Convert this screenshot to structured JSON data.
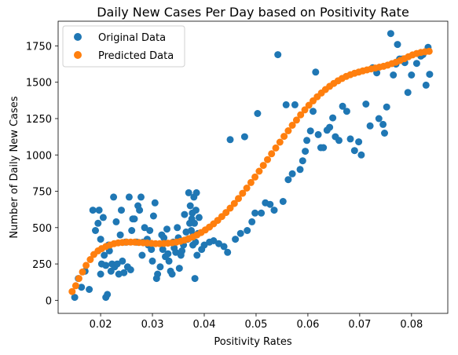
{
  "chart_data": {
    "type": "scatter",
    "title": "Daily New Cases Per Day based on Positivity Rate",
    "xlabel": "Positivity Rates",
    "ylabel": "Number of Daily New Cases",
    "xlim": [
      0.0118,
      0.087
    ],
    "ylim": [
      -90,
      1920
    ],
    "xticks": [
      0.02,
      0.03,
      0.04,
      0.05,
      0.06,
      0.07,
      0.08
    ],
    "xtick_labels": [
      "0.02",
      "0.03",
      "0.04",
      "0.05",
      "0.06",
      "0.07",
      "0.08"
    ],
    "yticks": [
      0,
      250,
      500,
      750,
      1000,
      1250,
      1500,
      1750
    ],
    "ytick_labels": [
      "0",
      "250",
      "500",
      "750",
      "1000",
      "1250",
      "1500",
      "1750"
    ],
    "grid": false,
    "legend_position": "top-left",
    "series": [
      {
        "name": "Original Data",
        "color": "#1f77b4",
        "points": [
          [
            0.015,
            20
          ],
          [
            0.0157,
            150
          ],
          [
            0.0163,
            90
          ],
          [
            0.017,
            200
          ],
          [
            0.0178,
            75
          ],
          [
            0.0185,
            620
          ],
          [
            0.019,
            480
          ],
          [
            0.0195,
            530
          ],
          [
            0.0197,
            620
          ],
          [
            0.02,
            180
          ],
          [
            0.02,
            420
          ],
          [
            0.0202,
            250
          ],
          [
            0.0205,
            570
          ],
          [
            0.0207,
            310
          ],
          [
            0.021,
            240
          ],
          [
            0.021,
            20
          ],
          [
            0.0213,
            40
          ],
          [
            0.0215,
            380
          ],
          [
            0.0217,
            340
          ],
          [
            0.022,
            200
          ],
          [
            0.0222,
            250
          ],
          [
            0.0225,
            710
          ],
          [
            0.0227,
            230
          ],
          [
            0.023,
            540
          ],
          [
            0.0232,
            250
          ],
          [
            0.0235,
            180
          ],
          [
            0.0238,
            450
          ],
          [
            0.024,
            620
          ],
          [
            0.0242,
            270
          ],
          [
            0.0245,
            190
          ],
          [
            0.0248,
            400
          ],
          [
            0.025,
            400
          ],
          [
            0.0252,
            230
          ],
          [
            0.0255,
            710
          ],
          [
            0.0258,
            210
          ],
          [
            0.026,
            480
          ],
          [
            0.0262,
            560
          ],
          [
            0.0265,
            560
          ],
          [
            0.0268,
            400
          ],
          [
            0.027,
            400
          ],
          [
            0.0272,
            650
          ],
          [
            0.0275,
            620
          ],
          [
            0.0278,
            710
          ],
          [
            0.028,
            310
          ],
          [
            0.0282,
            400
          ],
          [
            0.0285,
            500
          ],
          [
            0.029,
            420
          ],
          [
            0.0292,
            380
          ],
          [
            0.0295,
            480
          ],
          [
            0.0298,
            350
          ],
          [
            0.03,
            270
          ],
          [
            0.0302,
            580
          ],
          [
            0.0305,
            670
          ],
          [
            0.0308,
            150
          ],
          [
            0.031,
            180
          ],
          [
            0.0315,
            230
          ],
          [
            0.0318,
            450
          ],
          [
            0.032,
            350
          ],
          [
            0.0322,
            430
          ],
          [
            0.0325,
            300
          ],
          [
            0.0328,
            490
          ],
          [
            0.033,
            320
          ],
          [
            0.0332,
            270
          ],
          [
            0.0335,
            200
          ],
          [
            0.0338,
            180
          ],
          [
            0.034,
            400
          ],
          [
            0.0342,
            360
          ],
          [
            0.0345,
            330
          ],
          [
            0.0348,
            500
          ],
          [
            0.035,
            430
          ],
          [
            0.0352,
            220
          ],
          [
            0.0355,
            310
          ],
          [
            0.0357,
            340
          ],
          [
            0.036,
            380
          ],
          [
            0.0362,
            590
          ],
          [
            0.0365,
            470
          ],
          [
            0.0368,
            420
          ],
          [
            0.037,
            740
          ],
          [
            0.0372,
            530
          ],
          [
            0.0373,
            650
          ],
          [
            0.0375,
            480
          ],
          [
            0.0376,
            560
          ],
          [
            0.0377,
            600
          ],
          [
            0.0378,
            380
          ],
          [
            0.0379,
            450
          ],
          [
            0.038,
            710
          ],
          [
            0.0381,
            530
          ],
          [
            0.0382,
            150
          ],
          [
            0.0383,
            400
          ],
          [
            0.0384,
            620
          ],
          [
            0.0385,
            740
          ],
          [
            0.0386,
            310
          ],
          [
            0.0388,
            460
          ],
          [
            0.039,
            570
          ],
          [
            0.0395,
            350
          ],
          [
            0.04,
            380
          ],
          [
            0.041,
            400
          ],
          [
            0.0418,
            410
          ],
          [
            0.0428,
            390
          ],
          [
            0.0438,
            370
          ],
          [
            0.0445,
            330
          ],
          [
            0.045,
            1105
          ],
          [
            0.046,
            420
          ],
          [
            0.047,
            460
          ],
          [
            0.0478,
            1125
          ],
          [
            0.0483,
            480
          ],
          [
            0.0492,
            540
          ],
          [
            0.0498,
            600
          ],
          [
            0.0503,
            1285
          ],
          [
            0.051,
            600
          ],
          [
            0.0518,
            670
          ],
          [
            0.0527,
            660
          ],
          [
            0.0535,
            620
          ],
          [
            0.0542,
            1690
          ],
          [
            0.0552,
            680
          ],
          [
            0.0558,
            1345
          ],
          [
            0.0562,
            830
          ],
          [
            0.057,
            870
          ],
          [
            0.0575,
            1345
          ],
          [
            0.0585,
            900
          ],
          [
            0.059,
            960
          ],
          [
            0.0595,
            1025
          ],
          [
            0.0598,
            1100
          ],
          [
            0.0605,
            1165
          ],
          [
            0.061,
            1300
          ],
          [
            0.0615,
            1570
          ],
          [
            0.062,
            1140
          ],
          [
            0.0625,
            1050
          ],
          [
            0.063,
            1050
          ],
          [
            0.0637,
            1170
          ],
          [
            0.0642,
            1190
          ],
          [
            0.0648,
            1255
          ],
          [
            0.0653,
            1125
          ],
          [
            0.066,
            1100
          ],
          [
            0.0667,
            1335
          ],
          [
            0.0675,
            1300
          ],
          [
            0.0682,
            1110
          ],
          [
            0.069,
            1030
          ],
          [
            0.0698,
            1090
          ],
          [
            0.0703,
            1000
          ],
          [
            0.0712,
            1350
          ],
          [
            0.072,
            1200
          ],
          [
            0.0725,
            1600
          ],
          [
            0.0733,
            1565
          ],
          [
            0.0737,
            1250
          ],
          [
            0.0745,
            1210
          ],
          [
            0.0748,
            1150
          ],
          [
            0.0752,
            1330
          ],
          [
            0.076,
            1835
          ],
          [
            0.0765,
            1550
          ],
          [
            0.077,
            1625
          ],
          [
            0.0773,
            1760
          ],
          [
            0.0777,
            1660
          ],
          [
            0.0782,
            1660
          ],
          [
            0.0787,
            1635
          ],
          [
            0.0793,
            1430
          ],
          [
            0.08,
            1550
          ],
          [
            0.081,
            1630
          ],
          [
            0.0818,
            1680
          ],
          [
            0.0822,
            1690
          ],
          [
            0.0828,
            1480
          ],
          [
            0.0832,
            1740
          ],
          [
            0.0835,
            1555
          ]
        ]
      },
      {
        "name": "Predicted Data",
        "color": "#ff7f0e",
        "points": [
          [
            0.0145,
            60
          ],
          [
            0.0152,
            100
          ],
          [
            0.0158,
            150
          ],
          [
            0.0165,
            195
          ],
          [
            0.0172,
            240
          ],
          [
            0.018,
            280
          ],
          [
            0.0187,
            315
          ],
          [
            0.0195,
            340
          ],
          [
            0.0202,
            355
          ],
          [
            0.021,
            370
          ],
          [
            0.0218,
            380
          ],
          [
            0.0226,
            390
          ],
          [
            0.0234,
            395
          ],
          [
            0.0242,
            398
          ],
          [
            0.025,
            400
          ],
          [
            0.0258,
            400
          ],
          [
            0.0266,
            400
          ],
          [
            0.0274,
            398
          ],
          [
            0.0282,
            396
          ],
          [
            0.029,
            394
          ],
          [
            0.0298,
            392
          ],
          [
            0.0306,
            390
          ],
          [
            0.0314,
            390
          ],
          [
            0.0322,
            391
          ],
          [
            0.033,
            393
          ],
          [
            0.0338,
            396
          ],
          [
            0.0346,
            400
          ],
          [
            0.0354,
            406
          ],
          [
            0.0362,
            414
          ],
          [
            0.037,
            424
          ],
          [
            0.0378,
            436
          ],
          [
            0.0386,
            450
          ],
          [
            0.0394,
            466
          ],
          [
            0.0402,
            484
          ],
          [
            0.041,
            504
          ],
          [
            0.0418,
            526
          ],
          [
            0.0426,
            550
          ],
          [
            0.0434,
            576
          ],
          [
            0.0442,
            604
          ],
          [
            0.045,
            634
          ],
          [
            0.0458,
            666
          ],
          [
            0.0466,
            700
          ],
          [
            0.0474,
            736
          ],
          [
            0.0482,
            772
          ],
          [
            0.049,
            810
          ],
          [
            0.0498,
            848
          ],
          [
            0.0506,
            888
          ],
          [
            0.0514,
            928
          ],
          [
            0.0522,
            968
          ],
          [
            0.053,
            1008
          ],
          [
            0.0538,
            1048
          ],
          [
            0.0546,
            1088
          ],
          [
            0.0554,
            1128
          ],
          [
            0.0562,
            1166
          ],
          [
            0.057,
            1204
          ],
          [
            0.0578,
            1240
          ],
          [
            0.0586,
            1276
          ],
          [
            0.0594,
            1310
          ],
          [
            0.0602,
            1342
          ],
          [
            0.061,
            1372
          ],
          [
            0.0618,
            1400
          ],
          [
            0.0626,
            1426
          ],
          [
            0.0634,
            1450
          ],
          [
            0.0642,
            1472
          ],
          [
            0.065,
            1492
          ],
          [
            0.0658,
            1510
          ],
          [
            0.0666,
            1526
          ],
          [
            0.0674,
            1540
          ],
          [
            0.0682,
            1552
          ],
          [
            0.069,
            1562
          ],
          [
            0.0698,
            1570
          ],
          [
            0.0706,
            1578
          ],
          [
            0.0714,
            1585
          ],
          [
            0.0722,
            1592
          ],
          [
            0.073,
            1598
          ],
          [
            0.0738,
            1604
          ],
          [
            0.0746,
            1610
          ],
          [
            0.0754,
            1618
          ],
          [
            0.0762,
            1628
          ],
          [
            0.077,
            1638
          ],
          [
            0.0778,
            1650
          ],
          [
            0.0786,
            1662
          ],
          [
            0.0794,
            1676
          ],
          [
            0.0802,
            1688
          ],
          [
            0.081,
            1698
          ],
          [
            0.0818,
            1705
          ],
          [
            0.0826,
            1710
          ],
          [
            0.0834,
            1713
          ]
        ]
      }
    ]
  }
}
